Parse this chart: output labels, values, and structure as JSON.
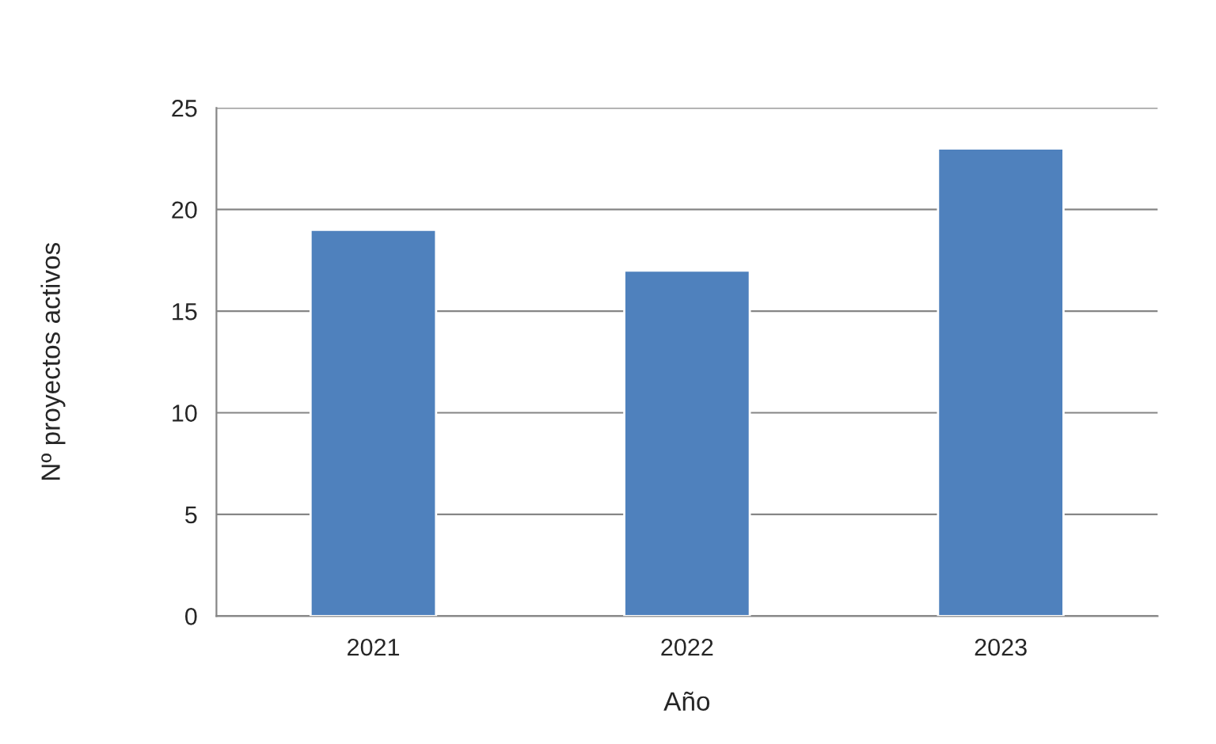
{
  "chart_data": {
    "type": "bar",
    "xlabel": "Año",
    "ylabel": "Nº proyectos activos",
    "categories": [
      "2021",
      "2022",
      "2023"
    ],
    "values": [
      19,
      17,
      23
    ],
    "color": "#4f81bd",
    "ylim": [
      0,
      25
    ],
    "yticks": [
      0,
      5,
      10,
      15,
      20,
      25
    ],
    "grid": "y"
  }
}
